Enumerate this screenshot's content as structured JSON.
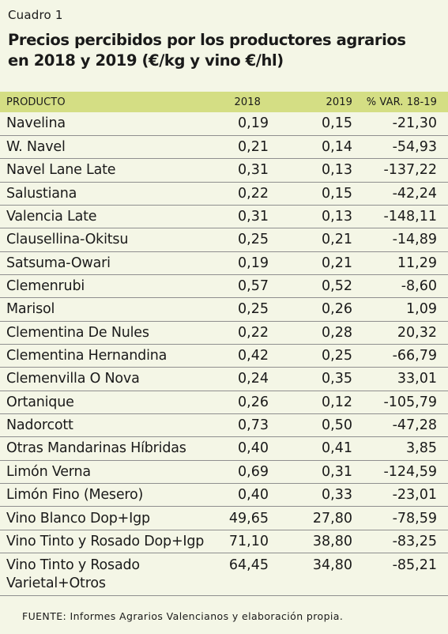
{
  "caption": "Cuadro 1",
  "title": "Precios percibidos por los productores agrarios en 2018 y 2019 (€/kg y vino €/hl)",
  "header": {
    "product": "PRODUCTO",
    "y2018": "2018",
    "y2019": "2019",
    "var": "% VAR. 18-19"
  },
  "rows": [
    {
      "product": "Navelina",
      "y2018": "0,19",
      "y2019": "0,15",
      "var": "-21,30"
    },
    {
      "product": "W. Navel",
      "y2018": "0,21",
      "y2019": "0,14",
      "var": "-54,93"
    },
    {
      "product": "Navel Lane Late",
      "y2018": "0,31",
      "y2019": "0,13",
      "var": "-137,22"
    },
    {
      "product": "Salustiana",
      "y2018": "0,22",
      "y2019": "0,15",
      "var": "-42,24"
    },
    {
      "product": "Valencia Late",
      "y2018": "0,31",
      "y2019": "0,13",
      "var": "-148,11"
    },
    {
      "product": "Clausellina-Okitsu",
      "y2018": "0,25",
      "y2019": "0,21",
      "var": "-14,89"
    },
    {
      "product": "Satsuma-Owari",
      "y2018": "0,19",
      "y2019": "0,21",
      "var": "11,29"
    },
    {
      "product": "Clemenrubi",
      "y2018": "0,57",
      "y2019": "0,52",
      "var": "-8,60"
    },
    {
      "product": "Marisol",
      "y2018": "0,25",
      "y2019": "0,26",
      "var": "1,09"
    },
    {
      "product": "Clementina De Nules",
      "y2018": "0,22",
      "y2019": "0,28",
      "var": "20,32"
    },
    {
      "product": "Clementina Hernandina",
      "y2018": "0,42",
      "y2019": "0,25",
      "var": "-66,79"
    },
    {
      "product": "Clemenvilla O Nova",
      "y2018": "0,24",
      "y2019": "0,35",
      "var": "33,01"
    },
    {
      "product": "Ortanique",
      "y2018": "0,26",
      "y2019": "0,12",
      "var": "-105,79"
    },
    {
      "product": "Nadorcott",
      "y2018": "0,73",
      "y2019": "0,50",
      "var": "-47,28"
    },
    {
      "product": "Otras Mandarinas Híbridas",
      "y2018": "0,40",
      "y2019": "0,41",
      "var": "3,85"
    },
    {
      "product": "Limón Verna",
      "y2018": "0,69",
      "y2019": "0,31",
      "var": "-124,59"
    },
    {
      "product": "Limón Fino (Mesero)",
      "y2018": "0,40",
      "y2019": "0,33",
      "var": "-23,01"
    },
    {
      "product": "Vino Blanco Dop+Igp",
      "y2018": "49,65",
      "y2019": "27,80",
      "var": "-78,59"
    },
    {
      "product": "Vino Tinto y Rosado Dop+Igp",
      "y2018": "71,10",
      "y2019": "38,80",
      "var": "-83,25"
    },
    {
      "product": "Vino Tinto y Rosado Varietal+Otros",
      "y2018": "64,45",
      "y2019": "34,80",
      "var": "-85,21"
    }
  ],
  "source": "FUENTE:  Informes Agrarios Valencianos y elaboración propia."
}
